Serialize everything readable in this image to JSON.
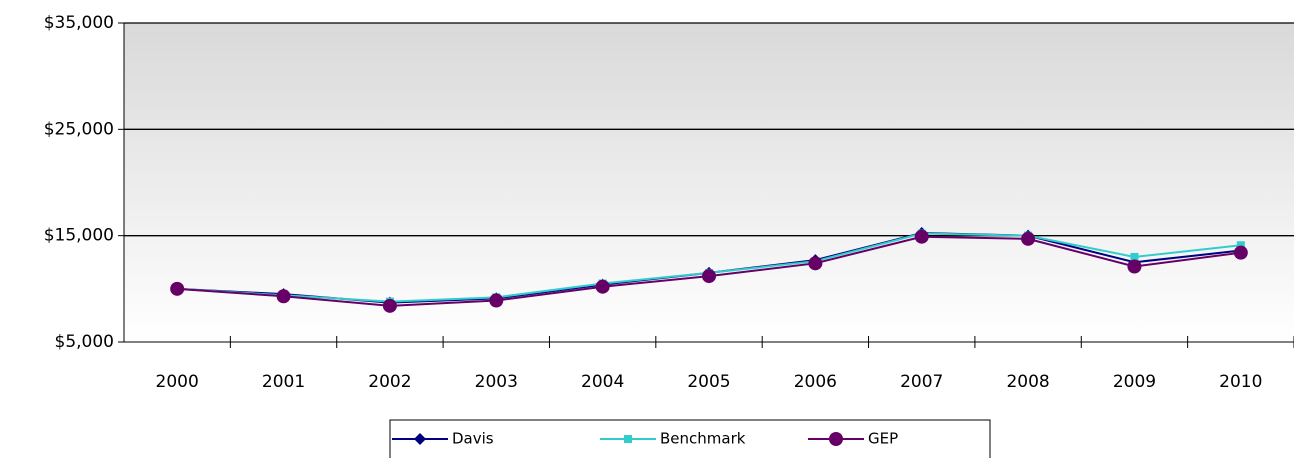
{
  "chart_data": {
    "type": "line",
    "categories": [
      "2000",
      "2001",
      "2002",
      "2003",
      "2004",
      "2005",
      "2006",
      "2007",
      "2008",
      "2009",
      "2010"
    ],
    "series": [
      {
        "name": "Davis",
        "color": "#000080",
        "marker": "diamond",
        "values": [
          10000,
          9500,
          8700,
          9100,
          10400,
          11500,
          12700,
          15250,
          15000,
          12500,
          13600
        ]
      },
      {
        "name": "Benchmark",
        "color": "#33cccc",
        "marker": "square",
        "values": [
          10000,
          9400,
          8800,
          9200,
          10500,
          11500,
          12600,
          15200,
          15000,
          13000,
          14100
        ]
      },
      {
        "name": "GEP",
        "color": "#660066",
        "marker": "circle",
        "values": [
          10000,
          9300,
          8400,
          8900,
          10200,
          11200,
          12400,
          14900,
          14700,
          12100,
          13400
        ]
      }
    ],
    "ylim": [
      5000,
      35000
    ],
    "yticks": [
      {
        "value": 5000,
        "label": "$5,000"
      },
      {
        "value": 15000,
        "label": "$15,000"
      },
      {
        "value": 25000,
        "label": "$25,000"
      },
      {
        "value": 35000,
        "label": "$35,000"
      }
    ],
    "grid": true,
    "legend": "bottom"
  }
}
